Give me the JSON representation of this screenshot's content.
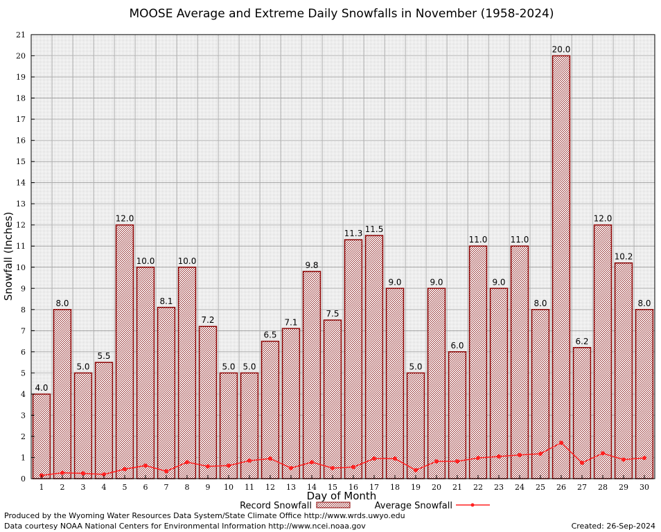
{
  "chart_data": {
    "type": "bar",
    "title": "MOOSE Average and Extreme Daily Snowfalls in November (1958-2024)",
    "xlabel": "Day of Month",
    "ylabel": "Snowfall (Inches)",
    "ylim": [
      0,
      21
    ],
    "yticks": [
      "0",
      "1",
      "2",
      "3",
      "4",
      "5",
      "6",
      "7",
      "8",
      "9",
      "10",
      "11",
      "12",
      "13",
      "14",
      "15",
      "16",
      "17",
      "18",
      "19",
      "20",
      "21"
    ],
    "categories": [
      "1",
      "2",
      "3",
      "4",
      "5",
      "6",
      "7",
      "8",
      "9",
      "10",
      "11",
      "12",
      "13",
      "14",
      "15",
      "16",
      "17",
      "18",
      "19",
      "20",
      "21",
      "22",
      "23",
      "24",
      "25",
      "26",
      "27",
      "28",
      "29",
      "30"
    ],
    "grid": true,
    "legend_position": "bottom",
    "series": [
      {
        "name": "Record Snowfall",
        "kind": "bar",
        "color": "#8b0000",
        "values": [
          4.0,
          8.0,
          5.0,
          5.5,
          12.0,
          10.0,
          8.1,
          10.0,
          7.2,
          5.0,
          5.0,
          6.5,
          7.1,
          9.8,
          7.5,
          11.3,
          11.5,
          9.0,
          5.0,
          9.0,
          6.0,
          11.0,
          9.0,
          11.0,
          8.0,
          20.0,
          6.2,
          12.0,
          10.2,
          8.0
        ],
        "labels": [
          "4.0",
          "8.0",
          "5.0",
          "5.5",
          "12.0",
          "10.0",
          "8.1",
          "10.0",
          "7.2",
          "5.0",
          "5.0",
          "6.5",
          "7.1",
          "9.8",
          "7.5",
          "11.3",
          "11.5",
          "9.0",
          "5.0",
          "9.0",
          "6.0",
          "11.0",
          "9.0",
          "11.0",
          "8.0",
          "20.0",
          "6.2",
          "12.0",
          "10.2",
          "8.0"
        ]
      },
      {
        "name": "Average Snowfall",
        "kind": "line",
        "color": "#ff2020",
        "values": [
          0.15,
          0.28,
          0.25,
          0.2,
          0.45,
          0.62,
          0.35,
          0.78,
          0.58,
          0.62,
          0.85,
          0.95,
          0.5,
          0.78,
          0.5,
          0.55,
          0.95,
          0.95,
          0.4,
          0.82,
          0.82,
          0.98,
          1.05,
          1.12,
          1.18,
          1.7,
          0.75,
          1.2,
          0.9,
          0.98
        ]
      }
    ]
  },
  "footer": {
    "line1": "Produced by the Wyoming Water Resources Data System/State Climate Office http://www.wrds.uwyo.edu",
    "line2": "Data courtesy NOAA National Centers for Environmental Information http://www.ncei.noaa.gov",
    "created": "Created:  26-Sep-2024"
  }
}
